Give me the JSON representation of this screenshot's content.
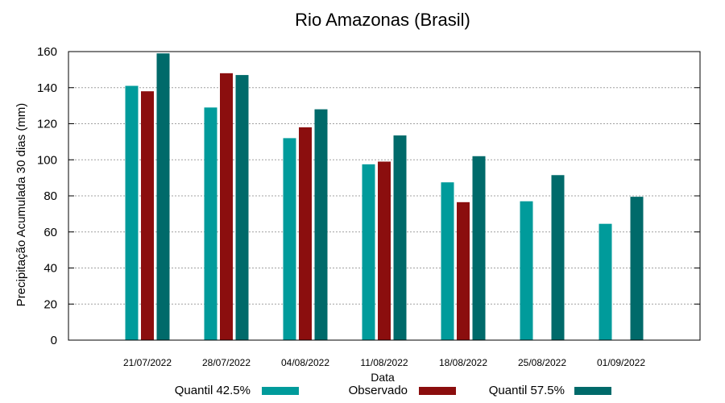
{
  "chart_data": {
    "type": "bar",
    "title": "Rio Amazonas (Brasil)",
    "xlabel": "Data",
    "ylabel": "Precipitação Acumulada 30 dias (mm)",
    "ylim": [
      0,
      160
    ],
    "yticks": [
      0,
      20,
      40,
      60,
      80,
      100,
      120,
      140,
      160
    ],
    "grid": true,
    "legend": "bottom",
    "categories": [
      "21/07/2022",
      "28/07/2022",
      "04/08/2022",
      "11/08/2022",
      "18/08/2022",
      "25/08/2022",
      "01/09/2022"
    ],
    "series": [
      {
        "name": "Quantil 42.5%",
        "color": "#009B9B",
        "values": [
          141,
          129,
          112,
          97.5,
          87.5,
          77,
          64.5
        ]
      },
      {
        "name": "Observado",
        "color": "#8B0E0E",
        "values": [
          138,
          148,
          118,
          99,
          76.5,
          null,
          null
        ]
      },
      {
        "name": "Quantil 57.5%",
        "color": "#006A6A",
        "values": [
          159,
          147,
          128,
          113.5,
          102,
          91.5,
          79.5
        ]
      }
    ]
  }
}
